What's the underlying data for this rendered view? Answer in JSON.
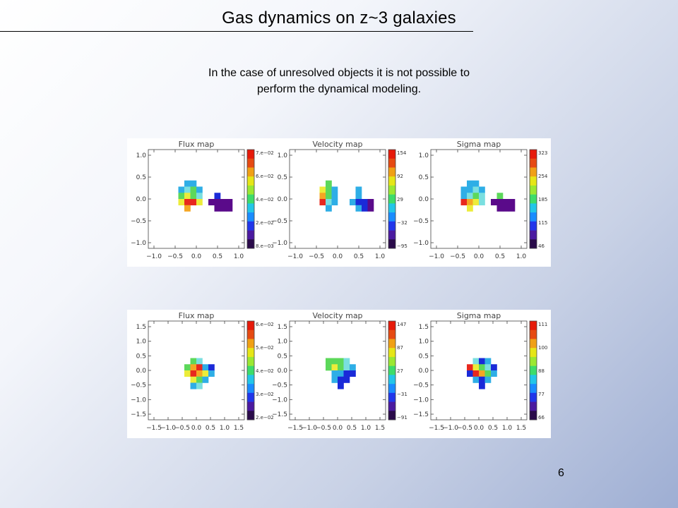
{
  "slide": {
    "title": "Gas dynamics on z~3 galaxies",
    "subtitle_line1": "In the case of unresolved objects it is not possible to",
    "subtitle_line2": "perform the dynamical modeling.",
    "page_number": "6"
  },
  "figures": [
    {
      "panels": [
        {
          "title": "Flux map",
          "yticks": [
            "1.0",
            "0.5",
            "0.0",
            "−0.5",
            "−1.0"
          ],
          "xticks": [
            "−1.0",
            "−0.5",
            "0.0",
            "0.5",
            "1.0"
          ],
          "colorbar_ticks": [
            "7.e−02",
            "6.e−02",
            "4.e−02",
            "2.e−02",
            "8.e−03"
          ]
        },
        {
          "title": "Velocity map",
          "yticks": [
            "1.0",
            "0.5",
            "0.0",
            "−0.5",
            "−1.0"
          ],
          "xticks": [
            "−1.0",
            "−0.5",
            "0.0",
            "0.5",
            "1.0"
          ],
          "colorbar_ticks": [
            "154",
            "92",
            "29",
            "−32",
            "−95"
          ]
        },
        {
          "title": "Sigma map",
          "yticks": [
            "1.0",
            "0.5",
            "0.0",
            "−0.5",
            "−1.0"
          ],
          "xticks": [
            "−1.0",
            "−0.5",
            "0.0",
            "0.5",
            "1.0"
          ],
          "colorbar_ticks": [
            "323",
            "254",
            "185",
            "115",
            "46"
          ]
        }
      ]
    },
    {
      "panels": [
        {
          "title": "Flux map",
          "yticks": [
            "1.5",
            "1.0",
            "0.5",
            "0.0",
            "−0.5",
            "−1.0",
            "−1.5"
          ],
          "xticks": [
            "−1.5",
            "−1.0",
            "−0.5",
            "0.0",
            "0.5",
            "1.0",
            "1.5"
          ],
          "colorbar_ticks": [
            "6.e−02",
            "5.e−02",
            "4.e−02",
            "3.e−02",
            "2.e−02"
          ]
        },
        {
          "title": "Velocity map",
          "yticks": [
            "1.5",
            "1.0",
            "0.5",
            "0.0",
            "−0.5",
            "−1.0",
            "−1.5"
          ],
          "xticks": [
            "−1.5",
            "−1.0",
            "−0.5",
            "0.0",
            "0.5",
            "1.0",
            "1.5"
          ],
          "colorbar_ticks": [
            "147",
            "87",
            "27",
            "−31",
            "−91"
          ]
        },
        {
          "title": "Sigma map",
          "yticks": [
            "1.5",
            "1.0",
            "0.5",
            "0.0",
            "−0.5",
            "−1.0",
            "−1.5"
          ],
          "xticks": [
            "−1.5",
            "−1.0",
            "−0.5",
            "0.0",
            "0.5",
            "1.0",
            "1.5"
          ],
          "colorbar_ticks": [
            "111",
            "100",
            "88",
            "77",
            "66"
          ]
        }
      ]
    }
  ]
}
